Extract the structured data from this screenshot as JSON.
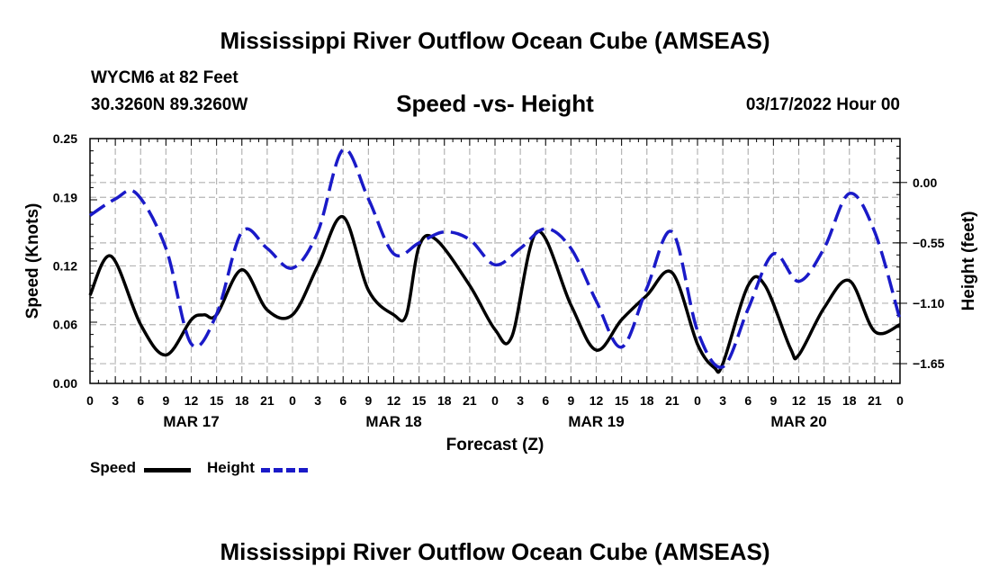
{
  "header": {
    "main_title": "Mississippi River Outflow Ocean Cube (AMSEAS)",
    "station": "WYCM6 at 82 Feet",
    "coordinates": "30.3260N  89.3260W",
    "plot_title": "Speed -vs- Height",
    "datetime": "03/17/2022 Hour 00",
    "footer_title": "Mississippi River Outflow Ocean Cube (AMSEAS)"
  },
  "legend": {
    "speed_label": "Speed",
    "height_label": "Height"
  },
  "colors": {
    "speed": "#000000",
    "height": "#1a1ac8",
    "grid": "#b4b4b4"
  },
  "chart_data": {
    "type": "line",
    "title": "Speed -vs- Height",
    "xlabel": "Forecast (Z)",
    "ylabel": "Speed (Knots)",
    "y2label": "Height (feet)",
    "x_range": [
      0,
      96
    ],
    "x_tick_hours": [
      0,
      3,
      6,
      9,
      12,
      15,
      18,
      21,
      24,
      27,
      30,
      33,
      36,
      39,
      42,
      45,
      48,
      51,
      54,
      57,
      60,
      63,
      66,
      69,
      72,
      75,
      78,
      81,
      84,
      87,
      90,
      93,
      96
    ],
    "x_tick_labels": [
      "0",
      "3",
      "6",
      "9",
      "12",
      "15",
      "18",
      "21",
      "0",
      "3",
      "6",
      "9",
      "12",
      "15",
      "18",
      "21",
      "0",
      "3",
      "6",
      "9",
      "12",
      "15",
      "18",
      "21",
      "0",
      "3",
      "6",
      "9",
      "12",
      "15",
      "18",
      "21",
      "0"
    ],
    "day_labels": [
      {
        "hour": 12,
        "label": "MAR 17"
      },
      {
        "hour": 36,
        "label": "MAR 18"
      },
      {
        "hour": 60,
        "label": "MAR 19"
      },
      {
        "hour": 84,
        "label": "MAR 20"
      }
    ],
    "ylim": [
      0,
      0.25
    ],
    "y_ticks": [
      0.0,
      0.06,
      0.12,
      0.19,
      0.25
    ],
    "y_tick_labels": [
      "0.00",
      "0.06",
      "0.12",
      "0.19",
      "0.25"
    ],
    "y2lim": [
      -1.83,
      0.4
    ],
    "y2_ticks": [
      0.0,
      -0.55,
      -1.1,
      -1.65
    ],
    "y2_tick_labels": [
      "0.00",
      "−0.55",
      "−1.10",
      "−1.65"
    ],
    "series": [
      {
        "name": "Speed",
        "axis": "left",
        "style": "solid",
        "points": [
          [
            0,
            0.09
          ],
          [
            2.5,
            0.13
          ],
          [
            6,
            0.06
          ],
          [
            9,
            0.029
          ],
          [
            12,
            0.065
          ],
          [
            13.5,
            0.07
          ],
          [
            15,
            0.07
          ],
          [
            18,
            0.116
          ],
          [
            21,
            0.075
          ],
          [
            24,
            0.07
          ],
          [
            27,
            0.12
          ],
          [
            30,
            0.17
          ],
          [
            33,
            0.095
          ],
          [
            36,
            0.07
          ],
          [
            37.5,
            0.07
          ],
          [
            39,
            0.14
          ],
          [
            41,
            0.147
          ],
          [
            45,
            0.1
          ],
          [
            48,
            0.055
          ],
          [
            50,
            0.048
          ],
          [
            53,
            0.155
          ],
          [
            57,
            0.08
          ],
          [
            60,
            0.034
          ],
          [
            63,
            0.065
          ],
          [
            66,
            0.09
          ],
          [
            69,
            0.113
          ],
          [
            72,
            0.04
          ],
          [
            74,
            0.016
          ],
          [
            75,
            0.02
          ],
          [
            78,
            0.1
          ],
          [
            80,
            0.1
          ],
          [
            83,
            0.036
          ],
          [
            84,
            0.029
          ],
          [
            87,
            0.077
          ],
          [
            90,
            0.105
          ],
          [
            93,
            0.053
          ],
          [
            96,
            0.06
          ]
        ]
      },
      {
        "name": "Height",
        "axis": "right",
        "style": "dashed",
        "points": [
          [
            0,
            -0.3
          ],
          [
            3,
            -0.15
          ],
          [
            5.5,
            -0.1
          ],
          [
            9,
            -0.6
          ],
          [
            12,
            -1.47
          ],
          [
            15,
            -1.2
          ],
          [
            18,
            -0.45
          ],
          [
            21,
            -0.6
          ],
          [
            24,
            -0.78
          ],
          [
            27,
            -0.45
          ],
          [
            30,
            0.3
          ],
          [
            33,
            -0.15
          ],
          [
            36,
            -0.65
          ],
          [
            39,
            -0.55
          ],
          [
            42,
            -0.45
          ],
          [
            45,
            -0.52
          ],
          [
            48,
            -0.75
          ],
          [
            51,
            -0.6
          ],
          [
            54,
            -0.42
          ],
          [
            57,
            -0.6
          ],
          [
            60,
            -1.08
          ],
          [
            63,
            -1.5
          ],
          [
            66,
            -0.96
          ],
          [
            69,
            -0.45
          ],
          [
            72,
            -1.35
          ],
          [
            75,
            -1.68
          ],
          [
            78,
            -1.15
          ],
          [
            81,
            -0.65
          ],
          [
            84,
            -0.9
          ],
          [
            87,
            -0.6
          ],
          [
            90,
            -0.1
          ],
          [
            93,
            -0.45
          ],
          [
            96,
            -1.25
          ]
        ]
      }
    ]
  }
}
